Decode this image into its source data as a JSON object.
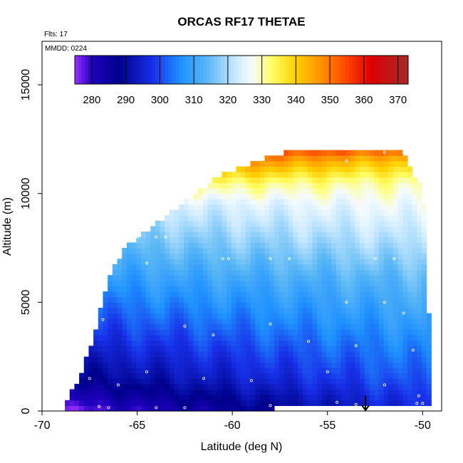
{
  "chart_data": {
    "type": "heatmap",
    "title": "ORCAS RF17 THETAE",
    "annotations": {
      "flights": "Flts: 17",
      "date": "MMDD: 0224"
    },
    "xlabel": "Latitude (deg N)",
    "ylabel": "Altitude (m)",
    "xlim": [
      -70,
      -49
    ],
    "ylim": [
      0,
      17000
    ],
    "x_ticks": [
      -70,
      -65,
      -60,
      -55,
      -50
    ],
    "y_ticks": [
      0,
      5000,
      10000,
      15000
    ],
    "colorbar": {
      "range": [
        275,
        373
      ],
      "ticks": [
        280,
        290,
        300,
        310,
        320,
        330,
        340,
        350,
        360,
        370
      ],
      "color_stops": [
        {
          "v": 275,
          "c": "#9b30ff"
        },
        {
          "v": 280,
          "c": "#2000c0"
        },
        {
          "v": 288,
          "c": "#00008b"
        },
        {
          "v": 298,
          "c": "#1830e8"
        },
        {
          "v": 306,
          "c": "#1e90ff"
        },
        {
          "v": 314,
          "c": "#5bb8f5"
        },
        {
          "v": 322,
          "c": "#c6e8ff"
        },
        {
          "v": 327,
          "c": "#f5fbff"
        },
        {
          "v": 333,
          "c": "#ffff66"
        },
        {
          "v": 340,
          "c": "#ffd000"
        },
        {
          "v": 348,
          "c": "#ff8c00"
        },
        {
          "v": 355,
          "c": "#ff4500"
        },
        {
          "v": 362,
          "c": "#dd0000"
        },
        {
          "v": 373,
          "c": "#a52a2a"
        }
      ]
    },
    "cell_size": {
      "lat": 0.25,
      "alt": 250
    },
    "domain_upper_edge": [
      [
        -68.8,
        200
      ],
      [
        -68.4,
        800
      ],
      [
        -68.0,
        1500
      ],
      [
        -67.7,
        2200
      ],
      [
        -67.4,
        3000
      ],
      [
        -67.1,
        4000
      ],
      [
        -66.8,
        5200
      ],
      [
        -66.2,
        6500
      ],
      [
        -65.5,
        7500
      ],
      [
        -64.5,
        8200
      ],
      [
        -63.5,
        8800
      ],
      [
        -62.5,
        9500
      ],
      [
        -61.5,
        10200
      ],
      [
        -60.5,
        10800
      ],
      [
        -59.0,
        11300
      ],
      [
        -57.5,
        11700
      ],
      [
        -56.0,
        12000
      ],
      [
        -55.0,
        12000
      ],
      [
        -52.5,
        12000
      ],
      [
        -51.0,
        11800
      ],
      [
        -50.7,
        11200
      ],
      [
        -50.1,
        10200
      ],
      [
        -49.9,
        9400
      ],
      [
        -49.8,
        4500
      ],
      [
        -49.6,
        4200
      ]
    ],
    "domain_lower_edge": [
      [
        -68.8,
        0
      ],
      [
        -57.9,
        0
      ],
      [
        -57.9,
        300
      ],
      [
        -49.8,
        300
      ],
      [
        -49.6,
        300
      ]
    ],
    "field_model": {
      "profile": [
        {
          "alt": 0,
          "south": 276,
          "north": 297
        },
        {
          "alt": 1500,
          "south": 288,
          "north": 302
        },
        {
          "alt": 3500,
          "south": 297,
          "north": 307
        },
        {
          "alt": 6000,
          "south": 307,
          "north": 314
        },
        {
          "alt": 8000,
          "south": 315,
          "north": 322
        },
        {
          "alt": 9500,
          "south": 322,
          "north": 327
        },
        {
          "alt": 10500,
          "south": 335,
          "north": 330
        },
        {
          "alt": 11500,
          "south": 355,
          "north": 340
        },
        {
          "alt": 12500,
          "south": 370,
          "north": 362
        }
      ]
    },
    "flight_track_points": [
      [
        -62.0,
        12150
      ],
      [
        -61.0,
        12150
      ],
      [
        -60.0,
        12150
      ],
      [
        -59.0,
        12150
      ],
      [
        -58.0,
        12150
      ],
      [
        -57.0,
        12200
      ],
      [
        -56.0,
        12200
      ],
      [
        -55.5,
        12100
      ],
      [
        -54.0,
        11500
      ],
      [
        -52.0,
        11900
      ],
      [
        -51.0,
        11900
      ],
      [
        -65.0,
        8000
      ],
      [
        -64.0,
        8000
      ],
      [
        -63.5,
        8000
      ],
      [
        -60.5,
        7000
      ],
      [
        -60.2,
        7000
      ],
      [
        -58.0,
        7000
      ],
      [
        -57.0,
        7000
      ],
      [
        -52.5,
        7000
      ],
      [
        -51.5,
        7000
      ],
      [
        -66.5,
        6800
      ],
      [
        -64.5,
        6800
      ],
      [
        -54.0,
        5000
      ],
      [
        -52.0,
        5000
      ],
      [
        -51.0,
        4500
      ],
      [
        -66.8,
        4200
      ],
      [
        -62.5,
        3900
      ],
      [
        -61.0,
        3500
      ],
      [
        -58.0,
        4000
      ],
      [
        -56.0,
        3200
      ],
      [
        -53.5,
        3000
      ],
      [
        -50.5,
        2800
      ],
      [
        -67.5,
        1500
      ],
      [
        -66.0,
        1200
      ],
      [
        -64.5,
        1800
      ],
      [
        -61.5,
        1500
      ],
      [
        -59.0,
        1400
      ],
      [
        -55.0,
        1800
      ],
      [
        -52.0,
        1200
      ],
      [
        -50.2,
        700
      ],
      [
        -67.0,
        200
      ],
      [
        -66.5,
        150
      ],
      [
        -64.0,
        150
      ],
      [
        -62.5,
        150
      ],
      [
        -58.0,
        250
      ],
      [
        -54.5,
        400
      ],
      [
        -53.5,
        300
      ],
      [
        -50.3,
        350
      ],
      [
        -50.0,
        350
      ]
    ],
    "arrow_marker": {
      "lat": -53.0,
      "alt_top": 700,
      "alt_bottom": 0
    }
  }
}
